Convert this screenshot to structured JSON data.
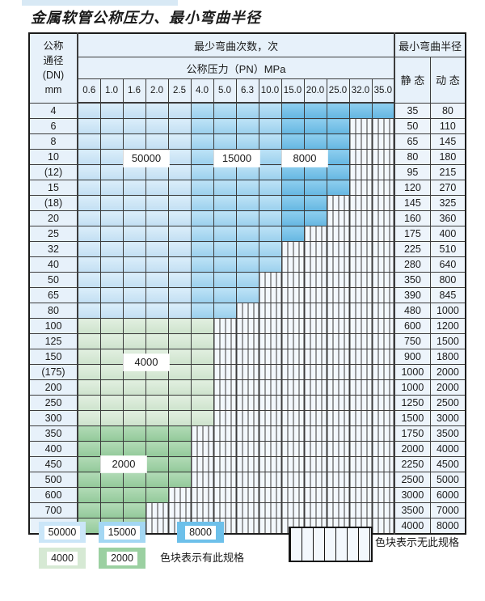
{
  "title": "金属软管公称压力、最小弯曲半径",
  "colors": {
    "blue_50000": "#cbe6f8",
    "blue_15000": "#a3d7f3",
    "blue_8000": "#6dc0ea",
    "green_4000": "#d6e9d4",
    "green_2000": "#9bd0a1",
    "nospec_bg": "#f3f8fd",
    "header_bg": "#e7f1fa",
    "value_bg": "#edf4fb",
    "border": "#3c3c3c"
  },
  "table": {
    "dn_header_lines": [
      "公称",
      "通径",
      "(DN)",
      "mm"
    ],
    "cycles_header": "最少弯曲次数，次",
    "pressure_header": "公称压力（PN）MPa",
    "pressure_columns": [
      "0.6",
      "1.0",
      "1.6",
      "2.0",
      "2.5",
      "4.0",
      "5.0",
      "6.3",
      "10.0",
      "15.0",
      "20.0",
      "25.0",
      "32.0",
      "35.0"
    ],
    "radius_header": "最小弯曲半径",
    "static_header": "静 态",
    "dynamic_header": "动 态",
    "cycle_bands": [
      {
        "cycles": "50000",
        "col_from": "0.6",
        "col_to": "2.5"
      },
      {
        "cycles": "15000",
        "col_from": "4.0",
        "col_to": "10.0"
      },
      {
        "cycles": "8000",
        "col_from": "15.0",
        "col_to": "35.0"
      }
    ],
    "flags": [
      {
        "text": "50000",
        "over_columns": "1.6–2.0",
        "at_dn": "10/(12)"
      },
      {
        "text": "15000",
        "over_columns": "5.0–6.3",
        "at_dn": "10/(12)"
      },
      {
        "text": "8000",
        "over_columns": "15.0–20.0",
        "at_dn": "10/(12)"
      },
      {
        "text": "4000",
        "over_columns": "1.6–2.0",
        "at_dn": "(175)/200"
      },
      {
        "text": "2000",
        "over_columns": "1.0–1.6",
        "at_dn": "500/600"
      }
    ],
    "rows": [
      {
        "dn": "4",
        "colored_count": 14,
        "band": "blue",
        "static": "35",
        "dynamic": "80"
      },
      {
        "dn": "6",
        "colored_count": 12,
        "band": "blue",
        "static": "50",
        "dynamic": "110"
      },
      {
        "dn": "8",
        "colored_count": 12,
        "band": "blue",
        "static": "65",
        "dynamic": "145"
      },
      {
        "dn": "10",
        "colored_count": 12,
        "band": "blue",
        "static": "80",
        "dynamic": "180"
      },
      {
        "dn": "(12)",
        "colored_count": 12,
        "band": "blue",
        "static": "95",
        "dynamic": "215"
      },
      {
        "dn": "15",
        "colored_count": 12,
        "band": "blue",
        "static": "120",
        "dynamic": "270"
      },
      {
        "dn": "(18)",
        "colored_count": 11,
        "band": "blue",
        "static": "145",
        "dynamic": "325"
      },
      {
        "dn": "20",
        "colored_count": 11,
        "band": "blue",
        "static": "160",
        "dynamic": "360"
      },
      {
        "dn": "25",
        "colored_count": 10,
        "band": "blue",
        "static": "175",
        "dynamic": "400"
      },
      {
        "dn": "32",
        "colored_count": 9,
        "band": "blue",
        "static": "225",
        "dynamic": "510"
      },
      {
        "dn": "40",
        "colored_count": 9,
        "band": "blue",
        "static": "280",
        "dynamic": "640"
      },
      {
        "dn": "50",
        "colored_count": 8,
        "band": "blue",
        "static": "350",
        "dynamic": "800"
      },
      {
        "dn": "65",
        "colored_count": 8,
        "band": "blue",
        "static": "390",
        "dynamic": "845"
      },
      {
        "dn": "80",
        "colored_count": 7,
        "band": "blue",
        "static": "480",
        "dynamic": "1000"
      },
      {
        "dn": "100",
        "colored_count": 6,
        "band": "green4000",
        "static": "600",
        "dynamic": "1200"
      },
      {
        "dn": "125",
        "colored_count": 6,
        "band": "green4000",
        "static": "750",
        "dynamic": "1500"
      },
      {
        "dn": "150",
        "colored_count": 6,
        "band": "green4000",
        "static": "900",
        "dynamic": "1800"
      },
      {
        "dn": "(175)",
        "colored_count": 6,
        "band": "green4000",
        "static": "1000",
        "dynamic": "2000"
      },
      {
        "dn": "200",
        "colored_count": 6,
        "band": "green4000",
        "static": "1000",
        "dynamic": "2000"
      },
      {
        "dn": "250",
        "colored_count": 6,
        "band": "green4000",
        "static": "1250",
        "dynamic": "2500"
      },
      {
        "dn": "300",
        "colored_count": 6,
        "band": "green4000",
        "static": "1500",
        "dynamic": "3000"
      },
      {
        "dn": "350",
        "colored_count": 5,
        "band": "green2000",
        "static": "1750",
        "dynamic": "3500"
      },
      {
        "dn": "400",
        "colored_count": 5,
        "band": "green2000",
        "static": "2000",
        "dynamic": "4000"
      },
      {
        "dn": "450",
        "colored_count": 5,
        "band": "green2000",
        "static": "2250",
        "dynamic": "4500"
      },
      {
        "dn": "500",
        "colored_count": 5,
        "band": "green2000",
        "static": "2500",
        "dynamic": "5000"
      },
      {
        "dn": "600",
        "colored_count": 4,
        "band": "green2000",
        "static": "3000",
        "dynamic": "6000"
      },
      {
        "dn": "700",
        "colored_count": 3,
        "band": "green2000",
        "static": "3500",
        "dynamic": "7000"
      },
      {
        "dn": "800",
        "colored_count": 3,
        "band": "green2000",
        "static": "4000",
        "dynamic": "8000"
      }
    ]
  },
  "legend": {
    "swatches": [
      {
        "label": "50000"
      },
      {
        "label": "15000"
      },
      {
        "label": "8000"
      },
      {
        "label": "4000"
      },
      {
        "label": "2000"
      }
    ],
    "has_spec_text": "色块表示有此规格",
    "no_spec_text": "色块表示无此规格"
  }
}
